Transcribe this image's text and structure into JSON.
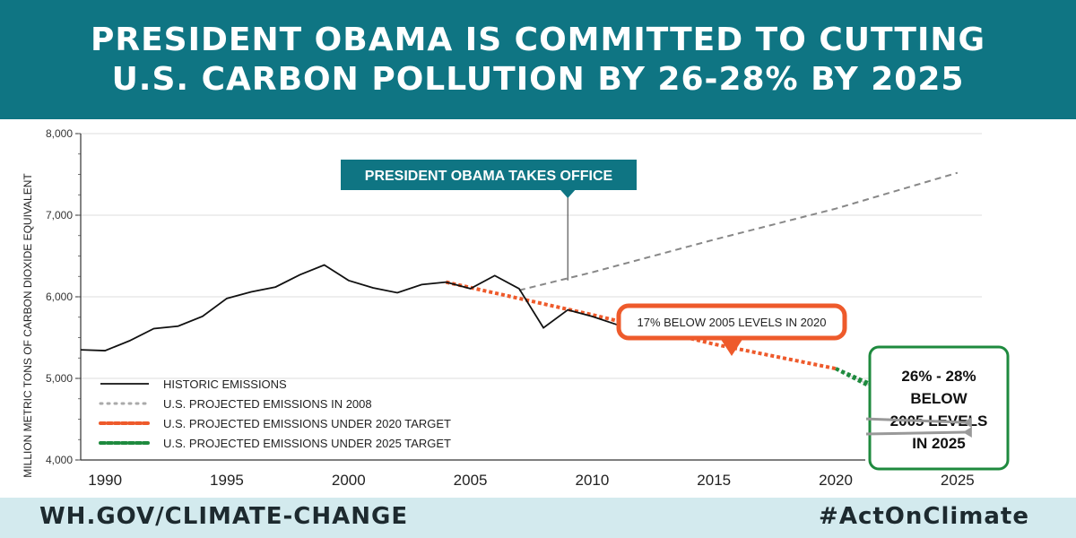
{
  "header": {
    "title_line1": "PRESIDENT OBAMA IS COMMITTED TO CUTTING",
    "title_line2": "U.S. CARBON POLLUTION BY 26-28% BY 2025"
  },
  "footer": {
    "url": "WH.GOV/CLIMATE-CHANGE",
    "hashtag": "#ActOnClimate"
  },
  "colors": {
    "teal": "#0f7583",
    "historic": "#111111",
    "projected_2008": "#888888",
    "target_2020": "#ee5a2b",
    "target_2025": "#1e8a3e",
    "footer_bg": "#d3eaee"
  },
  "chart_data": {
    "type": "line",
    "ylabel": "MILLION METRIC TONS OF CARBON DIOXIDE EQUIVALENT",
    "xlim": [
      1989,
      2026
    ],
    "ylim": [
      4000,
      8000
    ],
    "x_ticks": [
      1990,
      1995,
      2000,
      2005,
      2010,
      2015,
      2020,
      2025
    ],
    "x_tick_labels": [
      "1990",
      "1995",
      "2000",
      "2005",
      "2010",
      "2015",
      "2020",
      "2025"
    ],
    "y_ticks": [
      4000,
      5000,
      6000,
      7000,
      8000
    ],
    "y_tick_labels": [
      "4,000",
      "5,000",
      "6,000",
      "7,000",
      "8,000"
    ],
    "grid": true,
    "legend_position": "bottom-left",
    "series": [
      {
        "name": "HISTORIC EMISSIONS",
        "style": "solid",
        "color": "#111111",
        "x": [
          1989,
          1990,
          1991,
          1992,
          1993,
          1994,
          1995,
          1996,
          1997,
          1998,
          1999,
          2000,
          2001,
          2002,
          2003,
          2004,
          2005,
          2006,
          2007,
          2008,
          2009,
          2010,
          2011,
          2012
        ],
        "y": [
          5350,
          5340,
          5460,
          5610,
          5640,
          5760,
          5980,
          6060,
          6120,
          6270,
          6390,
          6200,
          6110,
          6050,
          6150,
          6180,
          6100,
          6260,
          6100,
          5620,
          5840,
          5760,
          5660,
          5600
        ]
      },
      {
        "name": "U.S. PROJECTED EMISSIONS IN 2008",
        "style": "dashed",
        "color": "#888888",
        "x": [
          2007,
          2010,
          2015,
          2020,
          2025
        ],
        "y": [
          6080,
          6300,
          6700,
          7080,
          7520
        ]
      },
      {
        "name": "U.S. PROJECTED EMISSIONS UNDER 2020 TARGET",
        "style": "dotted",
        "color": "#ee5a2b",
        "x": [
          2004,
          2010,
          2015,
          2020
        ],
        "y": [
          6180,
          5780,
          5420,
          5120
        ]
      },
      {
        "name": "U.S. PROJECTED EMISSIONS UNDER 2025 TARGET",
        "style": "dotted",
        "color": "#1e8a3e",
        "x": [
          2020,
          2025
        ],
        "y_upper": [
          5120,
          4460
        ],
        "y_lower": [
          5120,
          4340
        ]
      }
    ],
    "annotations": {
      "obama_office": {
        "text": "PRESIDENT OBAMA TAKES OFFICE",
        "x": 2009,
        "y": 6200
      },
      "target_2020": {
        "text": "17% BELOW 2005 LEVELS IN 2020",
        "x": 2020,
        "y": 5120
      },
      "target_2025": {
        "lines": [
          "26% - 28%",
          "BELOW",
          "2005 LEVELS",
          "IN 2025"
        ],
        "x": 2025,
        "y": 4400
      }
    }
  }
}
